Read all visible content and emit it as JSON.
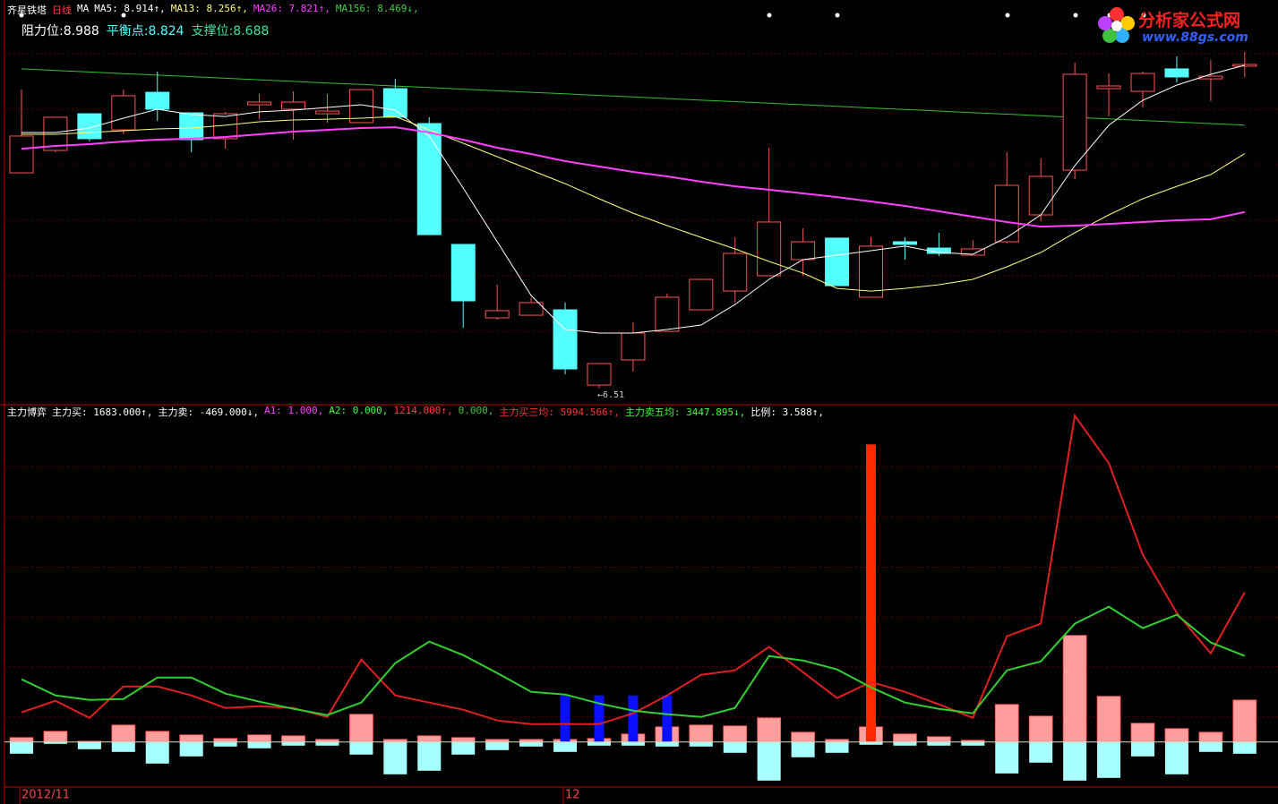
{
  "chart_data": [
    {
      "type": "candlestick",
      "title": "齐星铁塔",
      "subtitle": "日线",
      "legend": [
        {
          "text": "MA",
          "color": "#ffffff"
        },
        {
          "text": "MA5: 8.914↑,",
          "color": "#ffffff"
        },
        {
          "text": "MA13: 8.256↑,",
          "color": "#ffff7f"
        },
        {
          "text": "MA26: 7.821↑,",
          "color": "#ff40ff"
        },
        {
          "text": "MA156: 8.469↓,",
          "color": "#40d040"
        }
      ],
      "levels": [
        {
          "text": "阻力位:8.988",
          "color": "#ffffff"
        },
        {
          "text": "平衡点:8.824",
          "color": "#54ffff"
        },
        {
          "text": "支撑位:8.688",
          "color": "#40e0a0"
        }
      ],
      "open": [
        8.113,
        8.28,
        8.553,
        8.433,
        8.713,
        8.56,
        8.367,
        8.62,
        8.587,
        8.553,
        8.487,
        8.74,
        8.48,
        7.58,
        7.033,
        7.053,
        7.093,
        6.533,
        6.72,
        6.933,
        7.093,
        7.233,
        7.347,
        7.467,
        7.627,
        7.187,
        7.6,
        7.553,
        7.5,
        7.6,
        7.8,
        8.133,
        8.74,
        8.72,
        8.887,
        8.813,
        8.907
      ],
      "high": [
        8.733,
        8.527,
        8.553,
        8.733,
        8.867,
        8.56,
        8.567,
        8.7,
        8.72,
        8.7,
        8.733,
        8.813,
        8.527,
        7.58,
        7.28,
        7.18,
        7.147,
        6.693,
        7.0,
        7.213,
        7.32,
        7.633,
        8.3,
        7.7,
        7.627,
        7.633,
        7.633,
        7.667,
        7.613,
        8.267,
        8.22,
        8.933,
        8.853,
        8.867,
        8.98,
        8.953,
        9.013
      ],
      "low": [
        8.113,
        8.267,
        8.347,
        8.4,
        8.5,
        8.267,
        8.293,
        8.513,
        8.36,
        8.487,
        8.487,
        8.527,
        7.653,
        6.96,
        7.02,
        7.053,
        6.613,
        6.51,
        6.633,
        6.933,
        7.093,
        7.147,
        7.347,
        7.347,
        7.273,
        7.187,
        7.467,
        7.493,
        7.5,
        7.587,
        7.753,
        8.067,
        8.533,
        8.6,
        8.787,
        8.647,
        8.827
      ],
      "close": [
        8.387,
        8.527,
        8.367,
        8.687,
        8.587,
        8.36,
        8.553,
        8.64,
        8.64,
        8.573,
        8.733,
        8.527,
        7.653,
        7.16,
        7.087,
        7.147,
        6.653,
        6.693,
        6.92,
        7.187,
        7.32,
        7.513,
        7.747,
        7.6,
        7.273,
        7.567,
        7.58,
        7.513,
        7.547,
        8.02,
        8.087,
        8.847,
        8.76,
        8.853,
        8.827,
        8.833,
        8.92
      ],
      "up_color": "#ff5454",
      "down_color": "#54ffff",
      "series": [
        {
          "color": "#ffffff",
          "values": [
            8.413,
            8.413,
            8.447,
            8.52,
            8.587,
            8.547,
            8.533,
            8.567,
            8.58,
            8.6,
            8.62,
            8.58,
            8.387,
            8.0,
            7.6,
            7.2,
            6.947,
            6.92,
            6.92,
            6.947,
            6.98,
            7.133,
            7.32,
            7.467,
            7.5,
            7.533,
            7.567,
            7.52,
            7.507,
            7.633,
            7.8,
            8.167,
            8.467,
            8.653,
            8.767,
            8.847,
            8.914
          ]
        },
        {
          "color": "#ffff7f",
          "values": [
            8.4,
            8.4,
            8.413,
            8.427,
            8.44,
            8.447,
            8.467,
            8.493,
            8.507,
            8.513,
            8.52,
            8.533,
            8.433,
            8.333,
            8.233,
            8.133,
            8.033,
            7.92,
            7.813,
            7.72,
            7.633,
            7.547,
            7.453,
            7.367,
            7.253,
            7.233,
            7.253,
            7.28,
            7.32,
            7.413,
            7.52,
            7.667,
            7.8,
            7.92,
            8.013,
            8.1,
            8.256
          ]
        },
        {
          "color": "#ff40ff",
          "values": [
            8.293,
            8.313,
            8.327,
            8.347,
            8.36,
            8.367,
            8.38,
            8.4,
            8.42,
            8.433,
            8.447,
            8.453,
            8.413,
            8.36,
            8.3,
            8.253,
            8.2,
            8.16,
            8.12,
            8.087,
            8.047,
            8.013,
            7.987,
            7.96,
            7.933,
            7.9,
            7.867,
            7.827,
            7.787,
            7.747,
            7.713,
            7.72,
            7.733,
            7.747,
            7.76,
            7.767,
            7.821
          ]
        },
        {
          "color": "#30c030",
          "values": [
            8.887,
            8.875,
            8.864,
            8.852,
            8.841,
            8.829,
            8.817,
            8.806,
            8.794,
            8.782,
            8.771,
            8.759,
            8.748,
            8.736,
            8.724,
            8.713,
            8.701,
            8.689,
            8.678,
            8.666,
            8.654,
            8.643,
            8.631,
            8.62,
            8.608,
            8.596,
            8.585,
            8.573,
            8.561,
            8.55,
            8.538,
            8.526,
            8.515,
            8.503,
            8.492,
            8.48,
            8.469
          ]
        }
      ],
      "annotation": "←6.51",
      "ylim": [
        6.4,
        9.0
      ],
      "yticks": [
        9.0,
        8.587,
        8.173,
        7.76,
        7.347,
        6.933
      ],
      "grid": true
    },
    {
      "type": "bar",
      "title": "主力博弈",
      "legend": [
        {
          "text": "主力买: 1683.000↑,",
          "color": "#ffffff"
        },
        {
          "text": "主力卖: -469.000↓,",
          "color": "#ffffff"
        },
        {
          "text": "A1: 1.000,",
          "color": "#ff40ff"
        },
        {
          "text": "A2: 0.000,",
          "color": "#40ff40"
        },
        {
          "text": "1214.000↑,",
          "color": "#ff4040"
        },
        {
          "text": "0.000,",
          "color": "#40c040"
        },
        {
          "text": "主力买三均: 5994.566↑,",
          "color": "#ff3030"
        },
        {
          "text": "主力卖五均: 3447.895↓,",
          "color": "#40ff40"
        },
        {
          "text": "比例: 3.588↑,",
          "color": "#ffffff"
        }
      ],
      "categories": [
        "2012/11",
        null,
        null,
        null,
        null,
        null,
        null,
        null,
        null,
        null,
        null,
        null,
        null,
        null,
        null,
        null,
        "12",
        null,
        null,
        null,
        null,
        null,
        null,
        null,
        null,
        null,
        null,
        null,
        null,
        null,
        null,
        null,
        null,
        null,
        null,
        null,
        null
      ],
      "series": [
        {
          "kind": "bar",
          "color": "#ff9c9c",
          "values": [
            180,
            431,
            36,
            682,
            431,
            287,
            144,
            287,
            251,
            108,
            1113,
            108,
            251,
            180,
            108,
            108,
            108,
            144,
            323,
            610,
            682,
            646,
            969,
            395,
            108,
            610,
            323,
            215,
            72,
            1508,
            1041,
            4272,
            1831,
            754,
            539,
            395,
            1683
          ]
        },
        {
          "kind": "bar",
          "color": "#a8ffff",
          "values": [
            -467,
            -72,
            -287,
            -395,
            -862,
            -574,
            -180,
            -251,
            -144,
            -144,
            -503,
            -1292,
            -1149,
            -503,
            -323,
            -180,
            -395,
            -144,
            -144,
            -180,
            -180,
            -431,
            -1544,
            -610,
            -431,
            -108,
            -144,
            -144,
            -144,
            -1257,
            -826,
            -1544,
            -1436,
            -574,
            -1292,
            -395,
            -469
          ]
        },
        {
          "kind": "bar",
          "color": "#0a10ff",
          "values": [
            null,
            null,
            null,
            null,
            null,
            null,
            null,
            null,
            null,
            null,
            null,
            null,
            null,
            null,
            null,
            null,
            1867,
            1867,
            1867,
            1867,
            null,
            null,
            null,
            null,
            null,
            null,
            null,
            null,
            null,
            null,
            null,
            null,
            null,
            null,
            null,
            null,
            null
          ]
        },
        {
          "kind": "bar",
          "color": "#ff2a00",
          "values": [
            null,
            null,
            null,
            null,
            null,
            null,
            null,
            null,
            null,
            null,
            null,
            null,
            null,
            null,
            null,
            null,
            null,
            null,
            null,
            null,
            null,
            null,
            null,
            null,
            null,
            11919,
            null,
            null,
            null,
            null,
            null,
            null,
            null,
            null,
            null,
            null,
            null
          ]
        },
        {
          "kind": "line",
          "color": "#e02020",
          "values": [
            1185,
            1651,
            969,
            2226,
            2226,
            1867,
            1364,
            1436,
            1364,
            1005,
            3303,
            1867,
            1580,
            1292,
            862,
            718,
            718,
            718,
            1149,
            1867,
            2693,
            2872,
            3805,
            2800,
            1759,
            2405,
            2010,
            1508,
            969,
            4236,
            4739,
            13068,
            11165,
            7503,
            5170,
            3554,
            5994.566
          ]
        },
        {
          "kind": "line",
          "color": "#30d030",
          "values": [
            2513,
            1867,
            1687,
            1723,
            2585,
            2585,
            1939,
            1616,
            1328,
            1077,
            1580,
            3159,
            4021,
            3482,
            2764,
            2010,
            1903,
            1544,
            1257,
            1113,
            1005,
            1364,
            3446,
            3267,
            2908,
            2190,
            1580,
            1328,
            1149,
            2872,
            3231,
            4739,
            5421,
            4559,
            5098,
            3985,
            3447.895
          ]
        }
      ],
      "ylim": [
        -1800,
        13400
      ],
      "yticks": [
        11021,
        9011,
        7001,
        4990,
        3016,
        1005
      ],
      "grid": true
    }
  ],
  "logo": {
    "name": "分析家公式网",
    "url": "www.88gs.com"
  }
}
